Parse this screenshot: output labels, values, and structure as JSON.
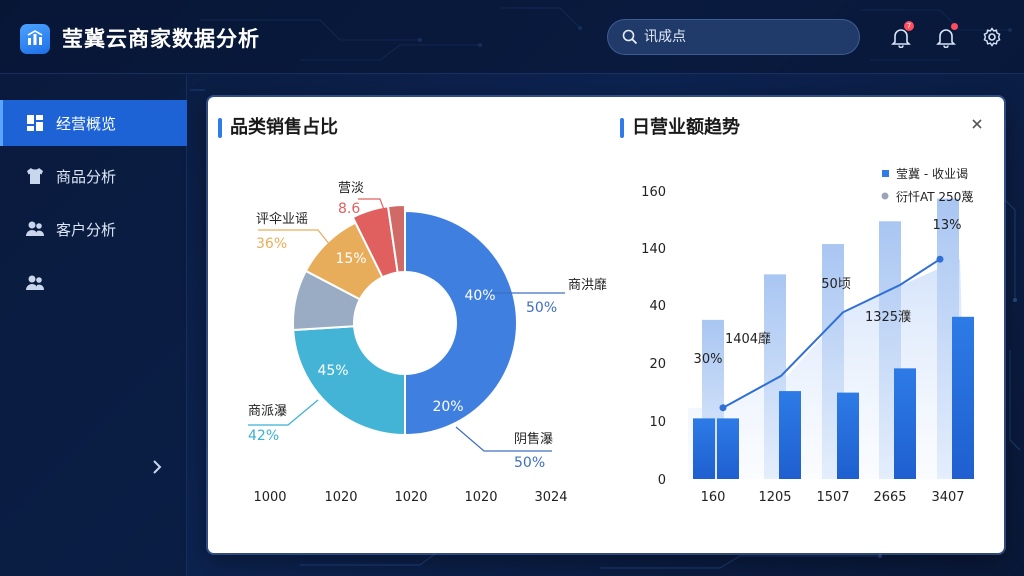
{
  "app": {
    "title": "莹冀云商家数据分析"
  },
  "search": {
    "placeholder": "讯成点"
  },
  "header": {
    "bell_badge": "7"
  },
  "sidebar": {
    "items": [
      {
        "label": "经营概览",
        "icon": "dashboard-icon",
        "active": true
      },
      {
        "label": "商品分析",
        "icon": "shirt-icon",
        "active": false
      },
      {
        "label": "客户分析",
        "icon": "users-icon",
        "active": false
      },
      {
        "label": "",
        "icon": "users-icon",
        "active": false
      }
    ]
  },
  "colors": {
    "accent": "#2f7be8",
    "donut": [
      "#3f7fe0",
      "#43b4d6",
      "#9aabc4",
      "#e8ad5a",
      "#e0605f",
      "#cf6a66"
    ]
  },
  "chart_data": [
    {
      "type": "pie",
      "title": "品类销售占比",
      "slices": [
        {
          "label": "商洪靡",
          "value": 50,
          "inner_label": "40%",
          "outer_label": "50%",
          "color": "#3f7fe0"
        },
        {
          "label": "商派瀑",
          "value": 24,
          "inner_label": "45%",
          "outer_label": "42%",
          "color": "#43b4d6"
        },
        {
          "label": "",
          "value": 8.7,
          "color": "#9aabc4"
        },
        {
          "label": "评伞业谣",
          "value": 10,
          "inner_label": "15%",
          "outer_label": "36%",
          "color": "#e8ad5a"
        },
        {
          "label": "营淡",
          "value": 5,
          "outer_label": "8.6",
          "color": "#e0605f"
        },
        {
          "label": "",
          "value": 2.3,
          "color": "#cf6a66"
        }
      ],
      "extra_labels": [
        {
          "label": "阴售瀑",
          "inner_label": "20%",
          "outer_label": "50%"
        }
      ],
      "bottom_axis": [
        "1000",
        "1020",
        "1020",
        "1020",
        "3024"
      ]
    },
    {
      "type": "bar",
      "title": "日营业额趋势",
      "categories": [
        "160",
        "1205",
        "1507",
        "2665",
        "3407"
      ],
      "yticks": [
        "160",
        "140",
        "40",
        "20",
        "10",
        "0"
      ],
      "series": [
        {
          "name": "莹冀 - 收业谒",
          "values": [
            105,
            135,
            155,
            170,
            185
          ]
        },
        {
          "name": "",
          "values": [
            40,
            58,
            57,
            73,
            107
          ]
        },
        {
          "name": "",
          "values": [
            23,
            0,
            0,
            0,
            0
          ]
        }
      ],
      "line": {
        "name": "衍忏AT 250蔑",
        "values": [
          47,
          68,
          110,
          128,
          145
        ]
      },
      "annotations": [
        "30%",
        "1404靡",
        "50顷",
        "1325濮",
        "13%"
      ]
    }
  ]
}
